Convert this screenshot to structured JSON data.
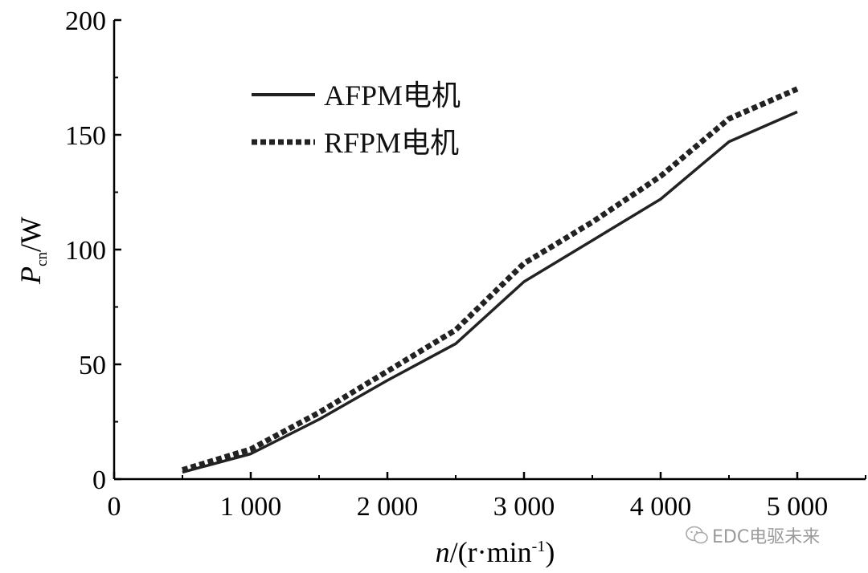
{
  "chart_data": {
    "type": "line",
    "x": [
      500,
      1000,
      1500,
      2000,
      2500,
      3000,
      3500,
      4000,
      4500,
      5000
    ],
    "series": [
      {
        "name": "AFPM电机",
        "style": "solid",
        "values": [
          3,
          11,
          26,
          43,
          59,
          86,
          104,
          122,
          147,
          160
        ]
      },
      {
        "name": "RFPM电机",
        "style": "dotted",
        "values": [
          4,
          13,
          29,
          47,
          65,
          94,
          112,
          132,
          157,
          170
        ]
      }
    ],
    "xlim": [
      0,
      5500
    ],
    "ylim": [
      0,
      200
    ],
    "xticks": [
      0,
      1000,
      2000,
      3000,
      4000,
      5000
    ],
    "xtick_labels": [
      "0",
      "1 000",
      "2 000",
      "3 000",
      "4 000",
      "5 000"
    ],
    "yticks": [
      0,
      50,
      100,
      150,
      200
    ],
    "ytick_labels": [
      "0",
      "50",
      "100",
      "150",
      "200"
    ],
    "xlabel": {
      "main": "n",
      "rest": "/(r·min",
      "sup": "-1",
      "close": ")"
    },
    "ylabel": {
      "main": "P",
      "sub": "cn",
      "rest": "/W"
    },
    "legend_position": "top-left",
    "grid": false,
    "line_color": "#222222"
  },
  "watermark": {
    "text": "EDC电驱未来"
  }
}
